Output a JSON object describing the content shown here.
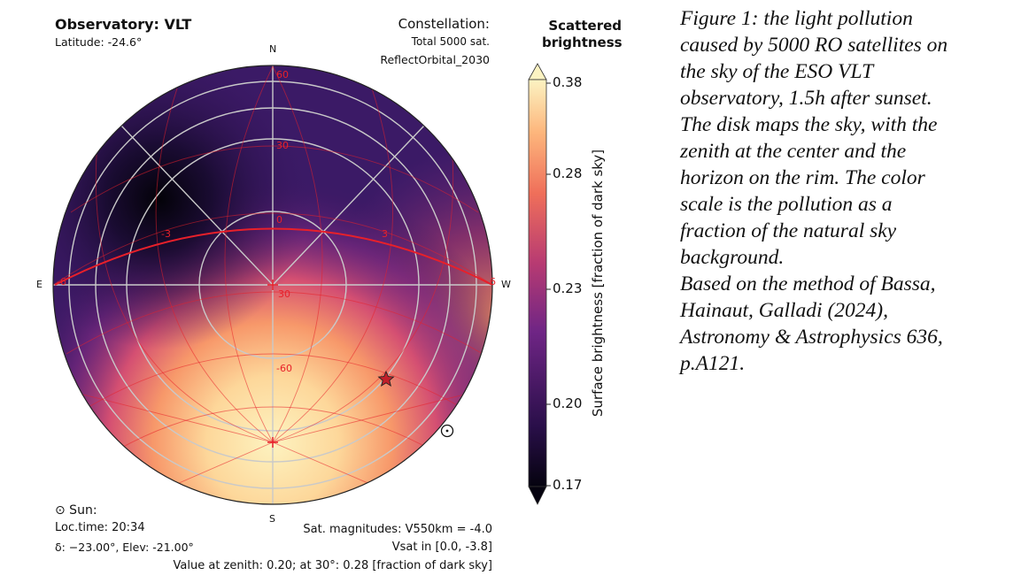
{
  "observatory_title": "Observatory: VLT",
  "latitude": "Latitude: -24.6°",
  "constellation_label": "Constellation:",
  "total_sat": "Total 5000 sat.",
  "constellation_name": "ReflectOrbital_2030",
  "colorbar_title_1": "Scattered",
  "colorbar_title_2": "brightness",
  "colorbar_axis_label": "Surface brightness [fraction of dark sky]",
  "colorbar_ticks": [
    "0.38",
    "0.28",
    "0.23",
    "0.20",
    "0.17"
  ],
  "cardinals": {
    "north": "N",
    "south": "S",
    "east": "E",
    "west": "W"
  },
  "grid_labels": {
    "dec_n60": "60",
    "dec_30": "30",
    "dec_0": "0",
    "dec_m60": "-60",
    "ha_m3": "-3",
    "ha_3": "3",
    "ha_m6": "-6",
    "ha_6": "6",
    "zen_30": "30"
  },
  "sun_label": "⊙ Sun:",
  "local_time": "Loc.time: 20:34",
  "sun_coords": "δ: −23.00°, Elev: -21.00°",
  "sat_magnitudes": "Sat. magnitudes: V550km = -4.0",
  "vsat_range": "Vsat in [0.0, -3.8]",
  "zenith_value": "Value at zenith: 0.20; at 30°: 0.28 [fraction of dark sky]",
  "sun_symbol": "⊙",
  "star_marker": "star-icon",
  "caption": [
    "Figure 1: the light pollution",
    "caused by 5000 RO satellites on",
    "the sky of the ESO VLT",
    "observatory, 1.5h after sunset.",
    "The disk maps the sky, with the",
    "zenith at the center and the",
    "horizon on the rim. The color",
    "scale is the pollution as a",
    "fraction of the natural sky",
    "background.",
    "Based on the method of Bassa,",
    "Hainaut, Galladi (2024),",
    "Astronomy & Astrophysics 636,",
    "p.A121."
  ],
  "colors": {
    "grid_red": "#e8202a",
    "alt_circle": "#c8c8c8",
    "cmap_dark": "#0a0518",
    "cmap_mid": "#7a2a82",
    "cmap_light": "#fdf5c0"
  }
}
